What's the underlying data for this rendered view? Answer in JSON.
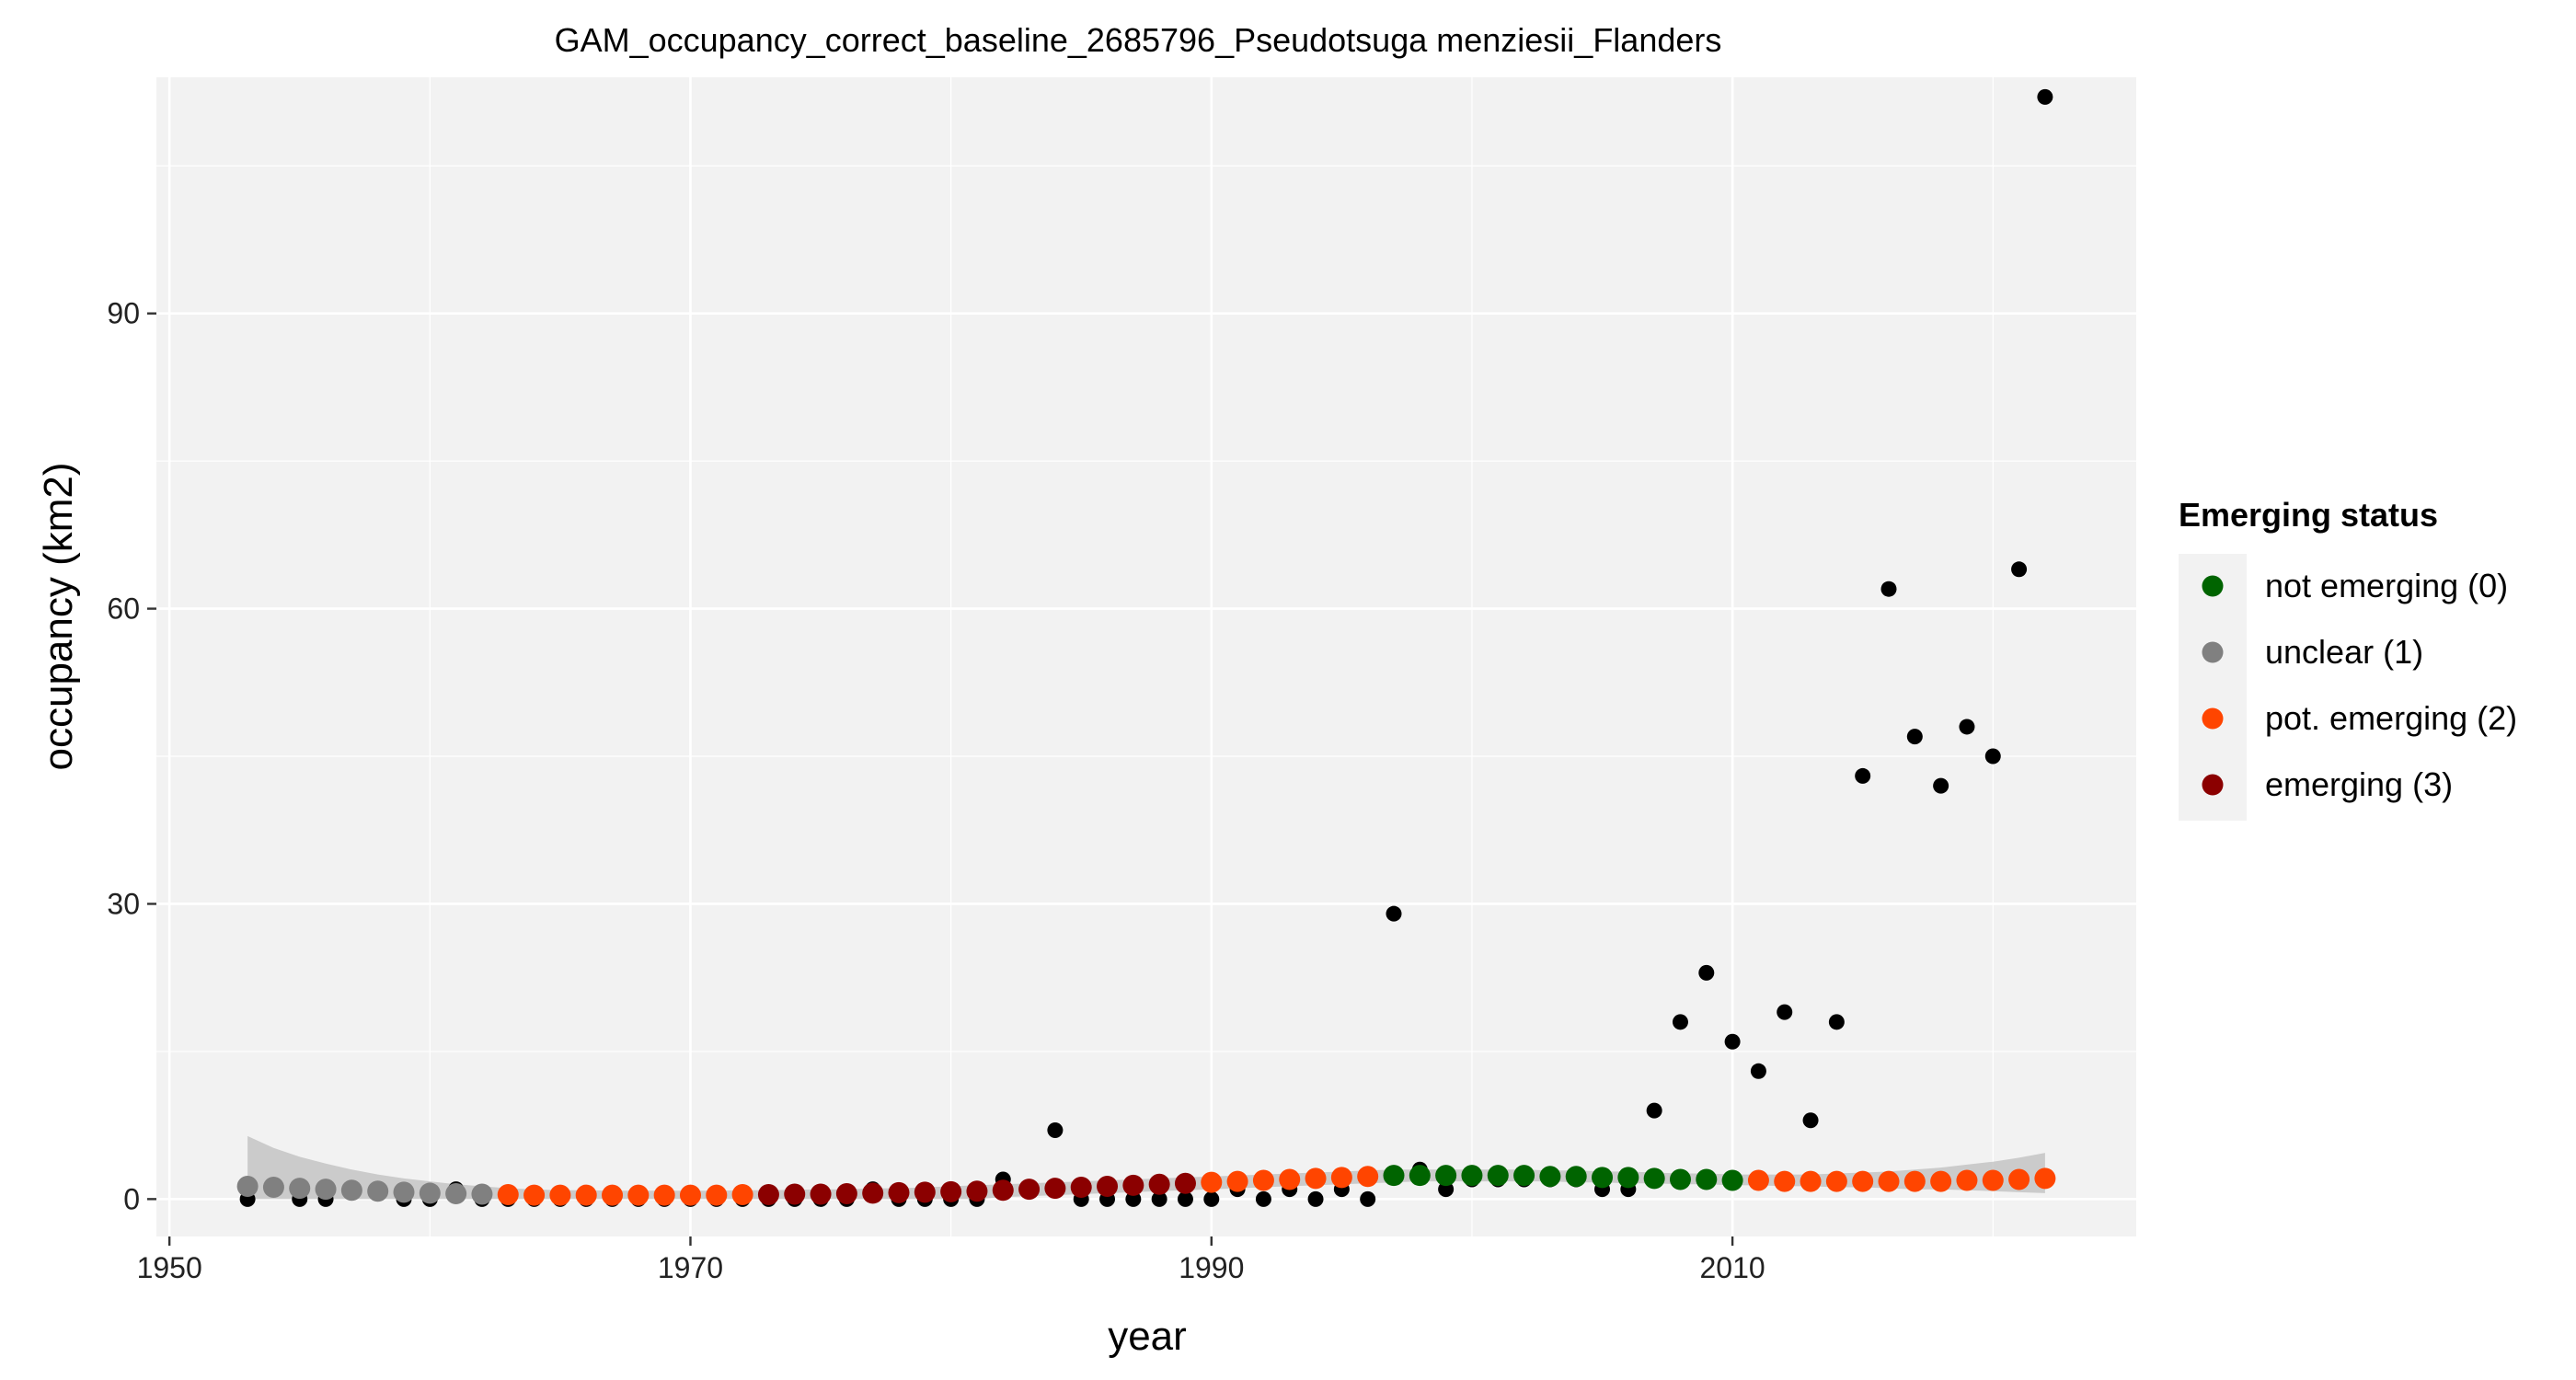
{
  "chart_data": {
    "type": "scatter",
    "title": "GAM_occupancy_correct_baseline_2685796_Pseudotsuga menziesii_Flanders",
    "xlabel": "year",
    "ylabel": "occupancy (km2)",
    "xlim": [
      1949.5,
      2025.5
    ],
    "ylim": [
      -3.8,
      114
    ],
    "x_ticks": [
      1950,
      1970,
      1990,
      2010
    ],
    "y_ticks": [
      0,
      30,
      60,
      90
    ],
    "grid": true,
    "legend_position": "right",
    "legend_title": "Emerging status",
    "legend": [
      {
        "label": "not emerging (0)",
        "color": "#006400",
        "status": 0
      },
      {
        "label": "unclear (1)",
        "color": "#808080",
        "status": 1
      },
      {
        "label": "pot. emerging (2)",
        "color": "#FF4500",
        "status": 2
      },
      {
        "label": "emerging (3)",
        "color": "#8B0000",
        "status": 3
      }
    ],
    "observed": {
      "color": "#000000",
      "x": [
        1953,
        1954,
        1955,
        1956,
        1957,
        1958,
        1959,
        1960,
        1961,
        1962,
        1963,
        1964,
        1965,
        1966,
        1967,
        1968,
        1969,
        1970,
        1971,
        1972,
        1973,
        1974,
        1975,
        1976,
        1977,
        1978,
        1979,
        1980,
        1981,
        1982,
        1983,
        1984,
        1985,
        1986,
        1987,
        1988,
        1989,
        1990,
        1991,
        1992,
        1993,
        1994,
        1995,
        1996,
        1997,
        1998,
        1999,
        2000,
        2001,
        2002,
        2003,
        2004,
        2005,
        2006,
        2007,
        2008,
        2009,
        2010,
        2011,
        2012,
        2013,
        2014,
        2015,
        2016,
        2017,
        2018,
        2019,
        2020,
        2021,
        2022
      ],
      "y": [
        0,
        1,
        0,
        0,
        1,
        1,
        0,
        0,
        1,
        0,
        0,
        0,
        0,
        0,
        0,
        0,
        0,
        0,
        0,
        0,
        0,
        0,
        0,
        0,
        1,
        0,
        0,
        0,
        0,
        2,
        1,
        7,
        0,
        0,
        0,
        0,
        0,
        0,
        1,
        0,
        1,
        0,
        1,
        0,
        29,
        3,
        1,
        2,
        2,
        2,
        2,
        2,
        1,
        1,
        9,
        18,
        23,
        16,
        13,
        19,
        8,
        18,
        43,
        62,
        47,
        42,
        48,
        45,
        64,
        112
      ]
    },
    "fitted": {
      "x": [
        1953,
        1954,
        1955,
        1956,
        1957,
        1958,
        1959,
        1960,
        1961,
        1962,
        1963,
        1964,
        1965,
        1966,
        1967,
        1968,
        1969,
        1970,
        1971,
        1972,
        1973,
        1974,
        1975,
        1976,
        1977,
        1978,
        1979,
        1980,
        1981,
        1982,
        1983,
        1984,
        1985,
        1986,
        1987,
        1988,
        1989,
        1990,
        1991,
        1992,
        1993,
        1994,
        1995,
        1996,
        1997,
        1998,
        1999,
        2000,
        2001,
        2002,
        2003,
        2004,
        2005,
        2006,
        2007,
        2008,
        2009,
        2010,
        2011,
        2012,
        2013,
        2014,
        2015,
        2016,
        2017,
        2018,
        2019,
        2020,
        2021,
        2022
      ],
      "y": [
        1.3,
        1.2,
        1.1,
        1.0,
        0.9,
        0.8,
        0.7,
        0.6,
        0.55,
        0.5,
        0.45,
        0.4,
        0.4,
        0.4,
        0.4,
        0.4,
        0.4,
        0.4,
        0.4,
        0.45,
        0.45,
        0.5,
        0.5,
        0.55,
        0.6,
        0.65,
        0.7,
        0.75,
        0.8,
        0.9,
        1.0,
        1.1,
        1.2,
        1.3,
        1.4,
        1.5,
        1.6,
        1.7,
        1.8,
        1.9,
        2.0,
        2.1,
        2.2,
        2.3,
        2.4,
        2.4,
        2.4,
        2.4,
        2.4,
        2.4,
        2.3,
        2.3,
        2.2,
        2.2,
        2.1,
        2.0,
        2.0,
        1.9,
        1.9,
        1.8,
        1.8,
        1.8,
        1.8,
        1.8,
        1.8,
        1.8,
        1.9,
        1.9,
        2.0,
        2.1
      ],
      "status": [
        1,
        1,
        1,
        1,
        1,
        1,
        1,
        1,
        1,
        1,
        2,
        2,
        2,
        2,
        2,
        2,
        2,
        2,
        2,
        2,
        3,
        3,
        3,
        3,
        3,
        3,
        3,
        3,
        3,
        3,
        3,
        3,
        3,
        3,
        3,
        3,
        3,
        2,
        2,
        2,
        2,
        2,
        2,
        2,
        0,
        0,
        0,
        0,
        0,
        0,
        0,
        0,
        0,
        0,
        0,
        0,
        0,
        0,
        2,
        2,
        2,
        2,
        2,
        2,
        2,
        2,
        2,
        2,
        2,
        2
      ],
      "ci_lower": [
        0,
        0,
        0,
        0,
        0,
        0,
        0,
        0,
        0,
        0,
        0,
        0,
        0,
        0,
        0,
        0,
        0,
        0,
        0,
        0,
        0,
        0,
        0,
        0,
        0,
        0,
        0,
        0,
        0,
        0.2,
        0.3,
        0.4,
        0.5,
        0.6,
        0.7,
        0.8,
        0.9,
        1.0,
        1.1,
        1.2,
        1.3,
        1.4,
        1.5,
        1.6,
        1.7,
        1.8,
        1.8,
        1.8,
        1.8,
        1.8,
        1.8,
        1.7,
        1.7,
        1.6,
        1.6,
        1.5,
        1.5,
        1.4,
        1.4,
        1.3,
        1.3,
        1.2,
        1.2,
        1.1,
        1.0,
        1.0,
        0.9,
        0.8,
        0.7,
        0.6
      ],
      "ci_upper": [
        6.4,
        5.2,
        4.3,
        3.6,
        3.0,
        2.5,
        2.1,
        1.8,
        1.5,
        1.3,
        1.1,
        1.0,
        0.9,
        0.9,
        0.85,
        0.85,
        0.85,
        0.85,
        0.85,
        0.9,
        0.9,
        0.95,
        1.0,
        1.0,
        1.1,
        1.1,
        1.2,
        1.3,
        1.4,
        1.5,
        1.6,
        1.7,
        1.8,
        1.9,
        2.0,
        2.1,
        2.2,
        2.3,
        2.4,
        2.5,
        2.6,
        2.7,
        2.8,
        2.9,
        3.0,
        3.0,
        3.0,
        3.0,
        3.0,
        3.0,
        2.9,
        2.9,
        2.8,
        2.8,
        2.7,
        2.6,
        2.6,
        2.5,
        2.5,
        2.5,
        2.5,
        2.6,
        2.7,
        2.8,
        3.0,
        3.2,
        3.5,
        3.8,
        4.2,
        4.7
      ]
    }
  }
}
